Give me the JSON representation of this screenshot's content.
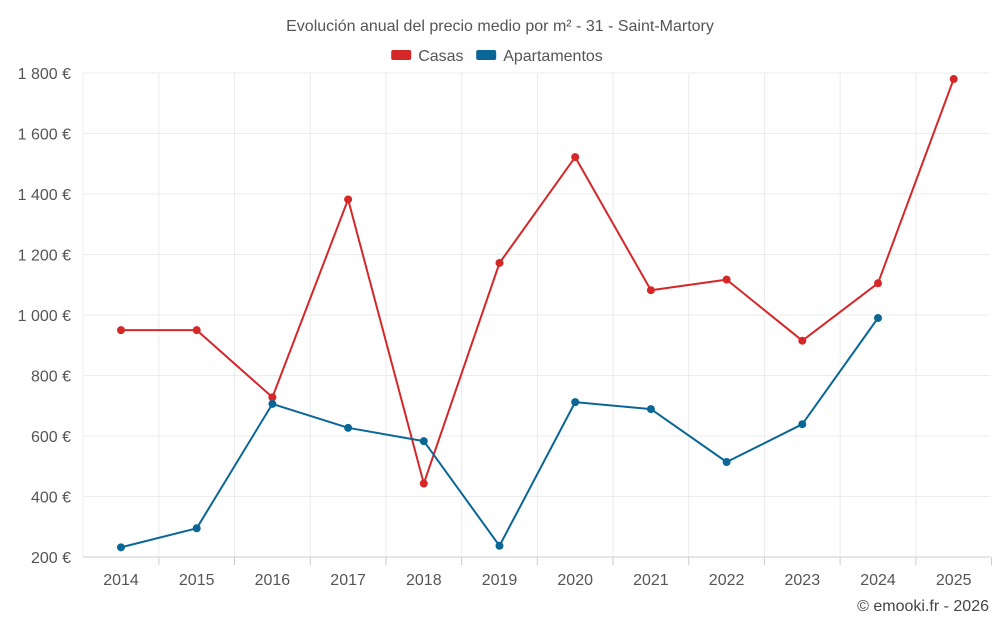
{
  "chart_data": {
    "type": "line",
    "title": "Evolución anual del precio medio por m² - 31 - Saint-Martory",
    "xlabel": "",
    "ylabel": "",
    "categories": [
      "2014",
      "2015",
      "2016",
      "2017",
      "2018",
      "2019",
      "2020",
      "2021",
      "2022",
      "2023",
      "2024",
      "2025"
    ],
    "y_ticks": [
      200,
      400,
      600,
      800,
      1000,
      1200,
      1400,
      1600,
      1800
    ],
    "y_tick_labels": [
      "200 €",
      "400 €",
      "600 €",
      "800 €",
      "1 000 €",
      "1 200 €",
      "1 400 €",
      "1 600 €",
      "1 800 €"
    ],
    "ylim": [
      200,
      1800
    ],
    "grid": true,
    "legend_position": "top-center",
    "series": [
      {
        "name": "Casas",
        "color": "#d62728",
        "values": [
          950,
          950,
          728,
          1382,
          443,
          1172,
          1522,
          1082,
          1117,
          915,
          1105,
          1780
        ]
      },
      {
        "name": "Apartamentos",
        "color": "#0a6696",
        "values": [
          232,
          295,
          706,
          627,
          583,
          237,
          712,
          689,
          514,
          639,
          990,
          null
        ]
      }
    ],
    "credit": "© emooki.fr - 2026"
  }
}
